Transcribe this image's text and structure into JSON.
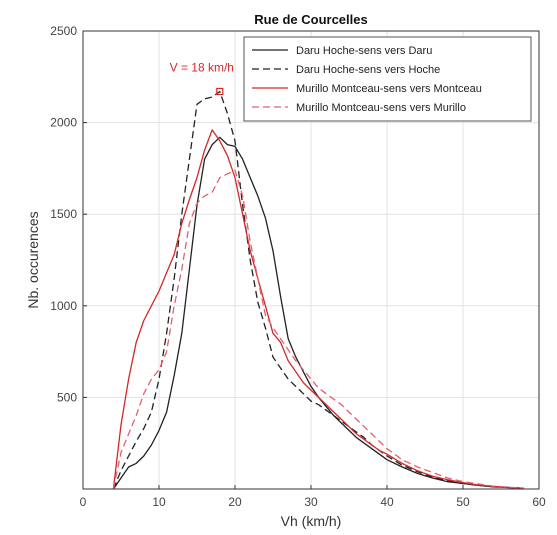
{
  "chart_data": {
    "type": "line",
    "title": "Rue de Courcelles",
    "xlabel": "Vh (km/h)",
    "ylabel": "Nb. occurences",
    "xlim": [
      0,
      60
    ],
    "ylim": [
      0,
      2500
    ],
    "xticks": [
      0,
      10,
      20,
      30,
      40,
      50,
      60
    ],
    "yticks": [
      500,
      1000,
      1500,
      2000,
      2500
    ],
    "grid": true,
    "legend_position": "top-right",
    "annotation": {
      "text": "V = 18 km/h",
      "x": 18,
      "y": 2170,
      "color": "#d62728"
    },
    "series": [
      {
        "name": "Daru Hoche-sens vers Daru",
        "color": "#222222",
        "dash": "solid",
        "x": [
          4,
          5,
          6,
          7,
          8,
          9,
          10,
          11,
          12,
          13,
          14,
          15,
          16,
          17,
          18,
          19,
          20,
          21,
          22,
          23,
          24,
          25,
          26,
          27,
          28,
          29,
          30,
          31,
          32,
          33,
          34,
          35,
          36,
          37,
          38,
          39,
          40,
          42,
          44,
          46,
          48,
          50,
          52,
          54,
          56,
          58
        ],
        "y": [
          0,
          60,
          120,
          140,
          180,
          240,
          320,
          420,
          620,
          850,
          1200,
          1550,
          1800,
          1880,
          1920,
          1880,
          1870,
          1800,
          1700,
          1600,
          1480,
          1300,
          1050,
          820,
          720,
          640,
          560,
          500,
          450,
          400,
          360,
          320,
          280,
          250,
          220,
          190,
          160,
          120,
          85,
          60,
          40,
          30,
          20,
          12,
          8,
          4
        ]
      },
      {
        "name": "Daru Hoche-sens vers Hoche",
        "color": "#222222",
        "dash": "dashed",
        "x": [
          4,
          5,
          6,
          7,
          8,
          9,
          10,
          11,
          12,
          13,
          14,
          15,
          16,
          17,
          18,
          19,
          20,
          21,
          22,
          23,
          24,
          25,
          26,
          27,
          28,
          29,
          30,
          31,
          32,
          33,
          34,
          35,
          36,
          37,
          38,
          39,
          40,
          42,
          44,
          46,
          48,
          50,
          52,
          54,
          56,
          58
        ],
        "y": [
          0,
          100,
          180,
          260,
          330,
          420,
          600,
          850,
          1150,
          1500,
          1800,
          2100,
          2130,
          2140,
          2170,
          2050,
          1900,
          1550,
          1250,
          1020,
          880,
          720,
          660,
          600,
          560,
          520,
          480,
          460,
          430,
          400,
          370,
          340,
          310,
          280,
          240,
          210,
          180,
          130,
          95,
          65,
          45,
          30,
          20,
          12,
          8,
          4
        ]
      },
      {
        "name": "Murillo Montceau-sens vers Montceau",
        "color": "#d62728",
        "dash": "solid",
        "x": [
          4,
          5,
          6,
          7,
          8,
          9,
          10,
          11,
          12,
          13,
          14,
          15,
          16,
          17,
          18,
          19,
          20,
          21,
          22,
          23,
          24,
          25,
          26,
          27,
          28,
          29,
          30,
          31,
          32,
          33,
          34,
          35,
          36,
          37,
          38,
          39,
          40,
          42,
          44,
          46,
          48,
          50,
          52,
          54,
          56,
          58
        ],
        "y": [
          0,
          350,
          600,
          800,
          920,
          1000,
          1080,
          1180,
          1280,
          1450,
          1580,
          1700,
          1850,
          1960,
          1900,
          1820,
          1700,
          1500,
          1300,
          1150,
          1000,
          850,
          800,
          700,
          640,
          580,
          540,
          500,
          460,
          420,
          380,
          340,
          300,
          270,
          240,
          210,
          190,
          140,
          100,
          70,
          50,
          35,
          22,
          14,
          8,
          4
        ]
      },
      {
        "name": "Murillo Montceau-sens vers Murillo",
        "color": "#e06070",
        "dash": "dashed",
        "x": [
          4,
          5,
          6,
          7,
          8,
          9,
          10,
          11,
          12,
          13,
          14,
          15,
          16,
          17,
          18,
          19,
          20,
          21,
          22,
          23,
          24,
          25,
          26,
          27,
          28,
          29,
          30,
          31,
          32,
          33,
          34,
          35,
          36,
          37,
          38,
          39,
          40,
          42,
          44,
          46,
          48,
          50,
          52,
          54,
          56,
          58
        ],
        "y": [
          0,
          200,
          300,
          400,
          520,
          600,
          650,
          750,
          1000,
          1200,
          1450,
          1560,
          1600,
          1620,
          1700,
          1720,
          1740,
          1600,
          1350,
          1150,
          950,
          880,
          820,
          760,
          700,
          650,
          600,
          550,
          520,
          490,
          460,
          420,
          380,
          340,
          300,
          260,
          220,
          160,
          120,
          90,
          60,
          40,
          28,
          16,
          10,
          5
        ]
      }
    ]
  }
}
